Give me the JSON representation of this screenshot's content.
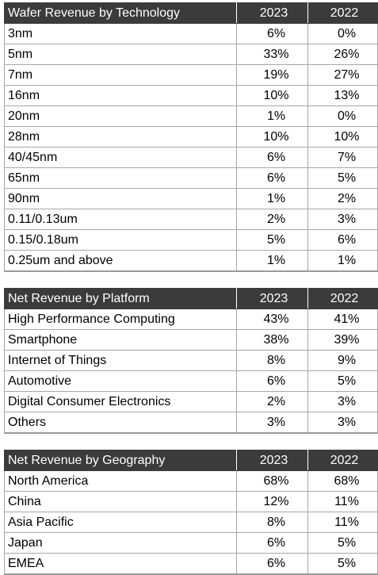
{
  "chart_data": [
    {
      "type": "table",
      "title": "Wafer Revenue by Technology",
      "columns": [
        "2023",
        "2022"
      ],
      "rows": [
        {
          "label": "3nm",
          "values": [
            "6%",
            "0%"
          ]
        },
        {
          "label": "5nm",
          "values": [
            "33%",
            "26%"
          ]
        },
        {
          "label": "7nm",
          "values": [
            "19%",
            "27%"
          ]
        },
        {
          "label": "16nm",
          "values": [
            "10%",
            "13%"
          ]
        },
        {
          "label": "20nm",
          "values": [
            "1%",
            "0%"
          ]
        },
        {
          "label": "28nm",
          "values": [
            "10%",
            "10%"
          ]
        },
        {
          "label": "40/45nm",
          "values": [
            "6%",
            "7%"
          ]
        },
        {
          "label": "65nm",
          "values": [
            "6%",
            "5%"
          ]
        },
        {
          "label": "90nm",
          "values": [
            "1%",
            "2%"
          ]
        },
        {
          "label": "0.11/0.13um",
          "values": [
            "2%",
            "3%"
          ]
        },
        {
          "label": "0.15/0.18um",
          "values": [
            "5%",
            "6%"
          ]
        },
        {
          "label": "0.25um and above",
          "values": [
            "1%",
            "1%"
          ]
        }
      ]
    },
    {
      "type": "table",
      "title": "Net Revenue by Platform",
      "columns": [
        "2023",
        "2022"
      ],
      "rows": [
        {
          "label": "High Performance Computing",
          "values": [
            "43%",
            "41%"
          ]
        },
        {
          "label": "Smartphone",
          "values": [
            "38%",
            "39%"
          ]
        },
        {
          "label": "Internet of Things",
          "values": [
            "8%",
            "9%"
          ]
        },
        {
          "label": "Automotive",
          "values": [
            "6%",
            "5%"
          ]
        },
        {
          "label": "Digital Consumer Electronics",
          "values": [
            "2%",
            "3%"
          ]
        },
        {
          "label": "Others",
          "values": [
            "3%",
            "3%"
          ]
        }
      ]
    },
    {
      "type": "table",
      "title": "Net Revenue by Geography",
      "columns": [
        "2023",
        "2022"
      ],
      "rows": [
        {
          "label": "North America",
          "values": [
            "68%",
            "68%"
          ]
        },
        {
          "label": "China",
          "values": [
            "12%",
            "11%"
          ]
        },
        {
          "label": "Asia Pacific",
          "values": [
            "8%",
            "11%"
          ]
        },
        {
          "label": "Japan",
          "values": [
            "6%",
            "5%"
          ]
        },
        {
          "label": "EMEA",
          "values": [
            "6%",
            "5%"
          ]
        }
      ]
    }
  ],
  "colors": {
    "header_background": "#3b3b3b",
    "header_text": "#ffffff",
    "grid_line": "#a7a7a7"
  }
}
